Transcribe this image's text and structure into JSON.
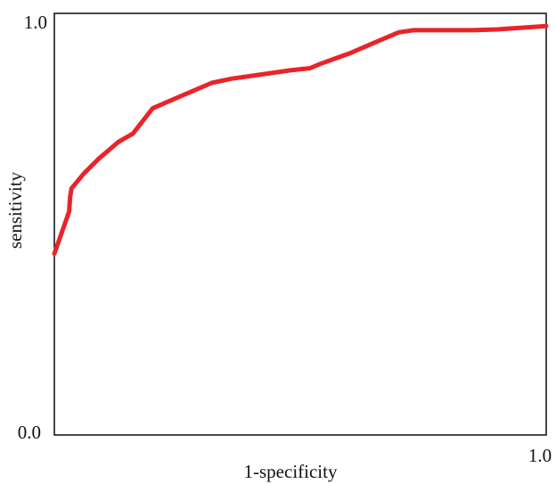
{
  "chart_data": {
    "type": "line",
    "title": "",
    "xlabel": "1-specificity",
    "ylabel": "sensitivity",
    "xlim": [
      0.0,
      1.0
    ],
    "ylim": [
      0.0,
      1.0
    ],
    "x_tick_labels": [
      "1.0"
    ],
    "y_tick_labels": [
      "0.0",
      "1.0"
    ],
    "grid": false,
    "legend": "none",
    "series": [
      {
        "color": "#e8242b",
        "x": [
          0.0,
          0.03,
          0.032,
          0.035,
          0.06,
          0.09,
          0.13,
          0.16,
          0.18,
          0.2,
          0.26,
          0.32,
          0.36,
          0.42,
          0.48,
          0.52,
          0.54,
          0.6,
          0.66,
          0.7,
          0.73,
          0.85,
          0.9,
          1.0
        ],
        "y": [
          0.43,
          0.53,
          0.565,
          0.585,
          0.62,
          0.655,
          0.695,
          0.715,
          0.745,
          0.775,
          0.805,
          0.835,
          0.845,
          0.855,
          0.865,
          0.87,
          0.88,
          0.905,
          0.935,
          0.955,
          0.96,
          0.96,
          0.962,
          0.97
        ]
      }
    ]
  }
}
